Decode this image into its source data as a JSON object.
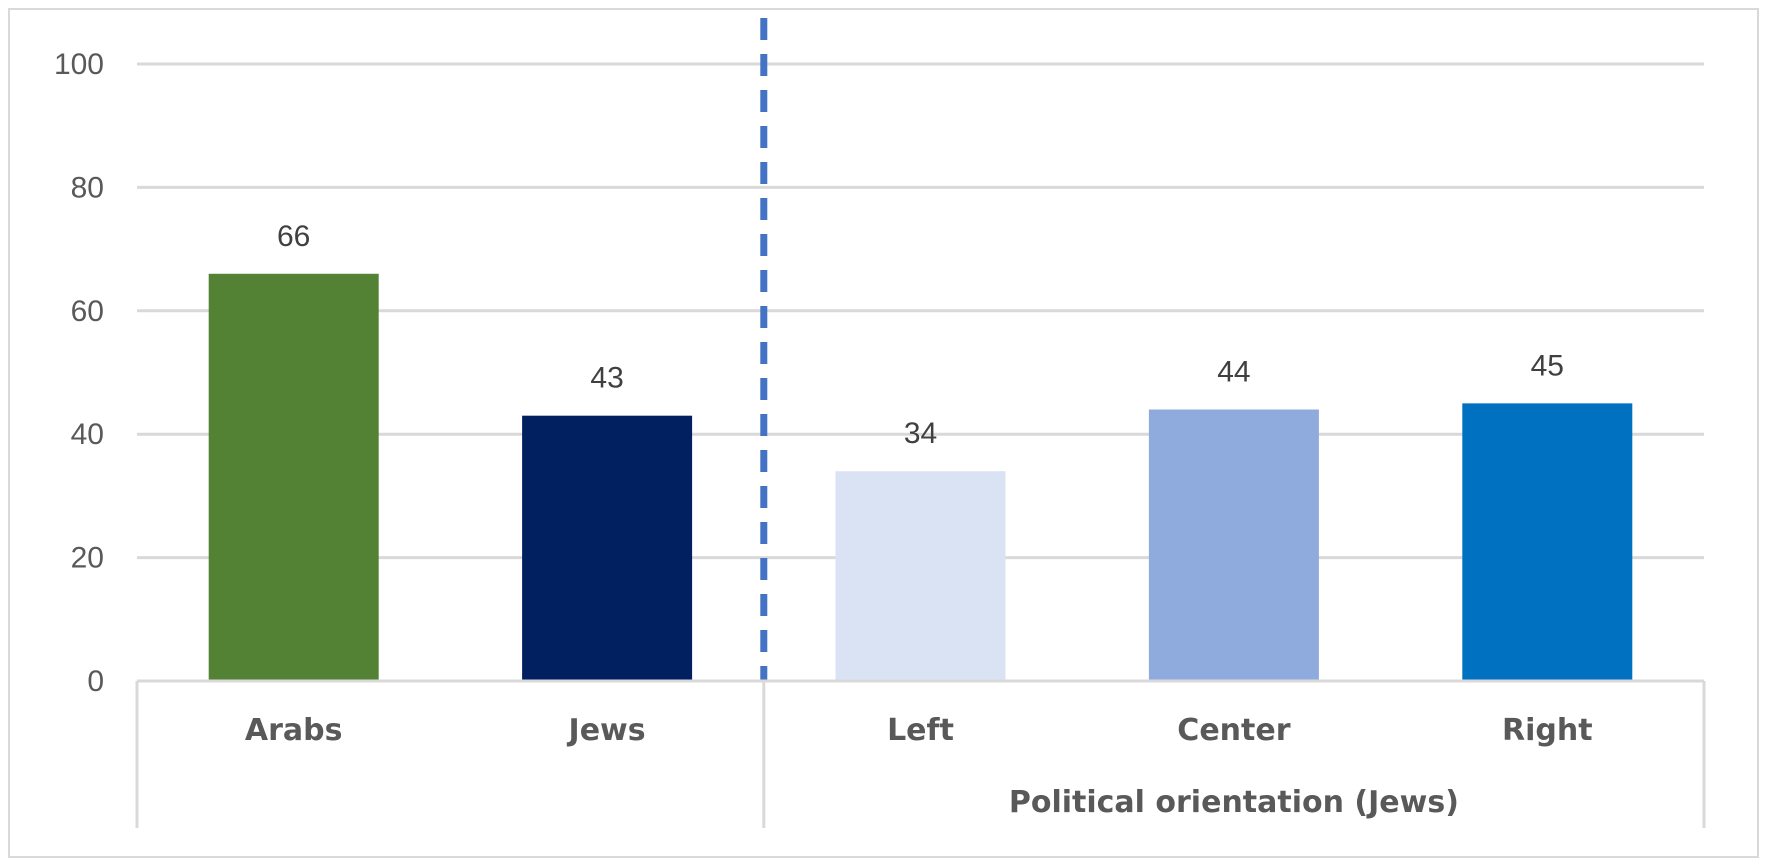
{
  "chart_data": {
    "type": "bar",
    "categories": [
      "Arabs",
      "Jews",
      "Left",
      "Center",
      "Right"
    ],
    "values": [
      66,
      43,
      34,
      44,
      45
    ],
    "colors": [
      "#548235",
      "#002060",
      "#dae3f3",
      "#8faadc",
      "#0070c0"
    ],
    "groups": [
      {
        "label": "",
        "categories": [
          "Arabs",
          "Jews"
        ]
      },
      {
        "label": "Political orientation (Jews)",
        "categories": [
          "Left",
          "Center",
          "Right"
        ]
      }
    ],
    "ylim": [
      0,
      100
    ],
    "yticks": [
      0,
      20,
      40,
      60,
      80,
      100
    ],
    "grid": true,
    "separator_after_category": "Jews",
    "separator_style": "dashed",
    "separator_color": "#4472c4",
    "gridline_color": "#d9d9d9",
    "title": "",
    "xlabel": "",
    "ylabel": ""
  }
}
